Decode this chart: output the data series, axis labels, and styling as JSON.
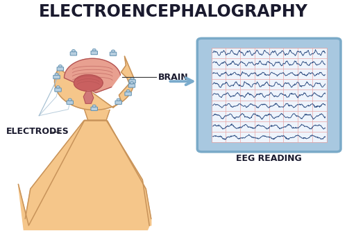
{
  "title": "ELECTROENCEPHALOGRAPHY",
  "title_fontsize": 17,
  "title_fontweight": "bold",
  "title_color": "#1a1a2e",
  "background_color": "#ffffff",
  "label_brain": "BRAIN",
  "label_electrodes": "ELECTRODES",
  "label_eeg": "EEG READING",
  "skin_color": "#f5c68a",
  "skin_outline": "#c8935a",
  "brain_outer_color": "#e8a090",
  "brain_inner_color": "#c96060",
  "brain_detail_color": "#d07878",
  "brain_outline": "#b05050",
  "electrode_body_color": "#b8cfe0",
  "electrode_outline": "#6090b0",
  "wire_color": "#a0bcd0",
  "monitor_frame_outer": "#7aaac8",
  "monitor_frame_inner": "#a8c8e0",
  "monitor_screen_bg": "#ddeeff",
  "eeg_line_color": "#2a4a80",
  "eeg_red_line": "#cc3333",
  "grid_color": "#e8aaaa",
  "arrow_color": "#7aabcc",
  "label_fontsize": 8,
  "label_fontweight": "bold",
  "label_color": "#1a1a2e"
}
